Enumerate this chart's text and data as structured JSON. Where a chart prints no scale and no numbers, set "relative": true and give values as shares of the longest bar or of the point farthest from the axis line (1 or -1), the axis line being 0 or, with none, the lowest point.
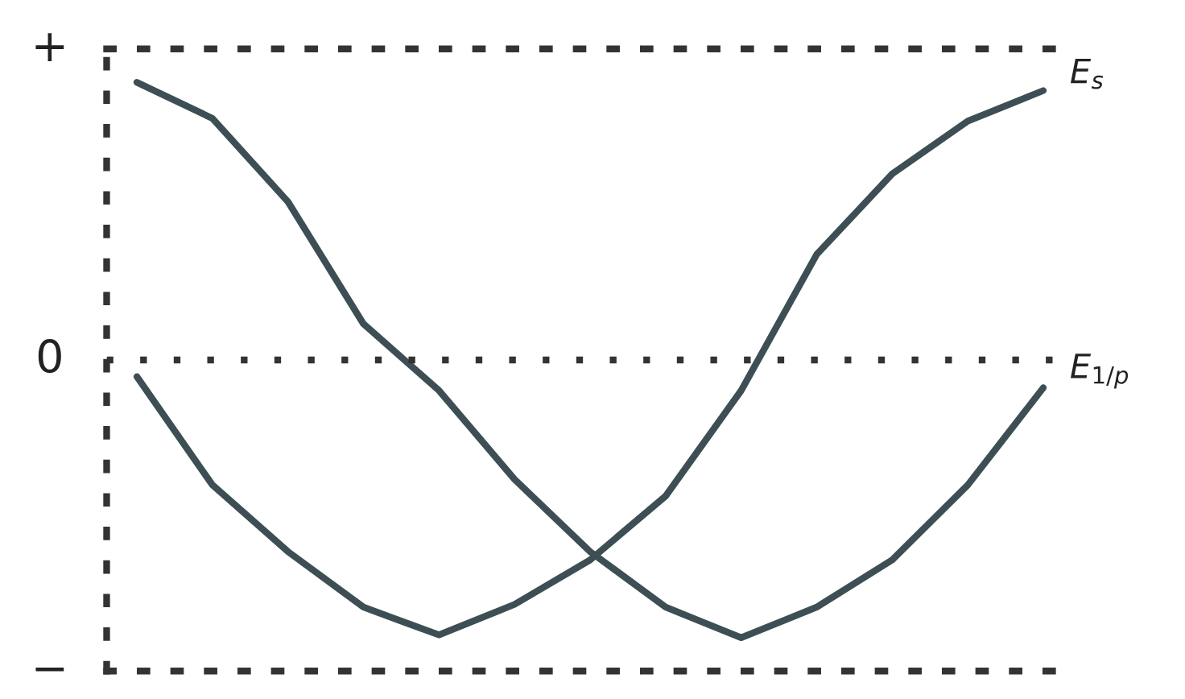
{
  "chart_data": {
    "type": "line",
    "relative": true,
    "categories": [
      null,
      null,
      null,
      null,
      null,
      null,
      null,
      null,
      null,
      null,
      null,
      null,
      null
    ],
    "series": [
      {
        "name": "E$_{s}$",
        "color": "#3d4f55",
        "values": [
          -0.06,
          -0.45,
          -0.69,
          -0.89,
          -0.99,
          -0.88,
          -0.72,
          -0.49,
          -0.11,
          0.38,
          0.67,
          0.86,
          0.97
        ]
      },
      {
        "name": "E$_{1/p}$",
        "color": "#3d4f55",
        "values": [
          1,
          0.87,
          0.57,
          0.13,
          -0.11,
          -0.43,
          -0.69,
          -0.89,
          -1,
          -0.89,
          -0.72,
          -0.45,
          -0.1
        ]
      }
    ],
    "annotations": [
      "+",
      "0",
      "−"
    ],
    "ref_lines": [
      {
        "axis": "y",
        "value": 0,
        "line_style": "dotted",
        "color": "#333333"
      }
    ],
    "line_style": "solid",
    "marker": "none",
    "legend": false
  }
}
